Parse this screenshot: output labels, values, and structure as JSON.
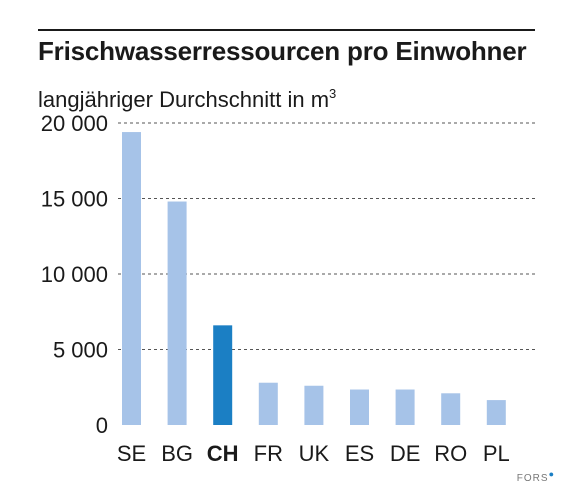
{
  "chart_data": {
    "type": "bar",
    "title": "Frischwasserressourcen pro Einwohner",
    "subtitle": "langjähriger Durchschnitt in m",
    "subtitle_superscript": "3",
    "categories": [
      "SE",
      "BG",
      "CH",
      "FR",
      "UK",
      "ES",
      "DE",
      "RO",
      "PL"
    ],
    "values": [
      19400,
      14800,
      6600,
      2800,
      2600,
      2350,
      2350,
      2100,
      1650
    ],
    "highlight_category": "CH",
    "ylim": [
      0,
      20000
    ],
    "y_ticks": [
      0,
      5000,
      10000,
      15000,
      20000
    ],
    "y_tick_labels": [
      "0",
      "5 000",
      "10 000",
      "15 000",
      "20 000"
    ],
    "grid": "dashed horizontal",
    "colors": {
      "bar": "#a6c3e8",
      "highlight": "#1b7fc4",
      "grid": "#555555"
    }
  },
  "footer": {
    "source": "FORS",
    "source_mark": "●"
  }
}
